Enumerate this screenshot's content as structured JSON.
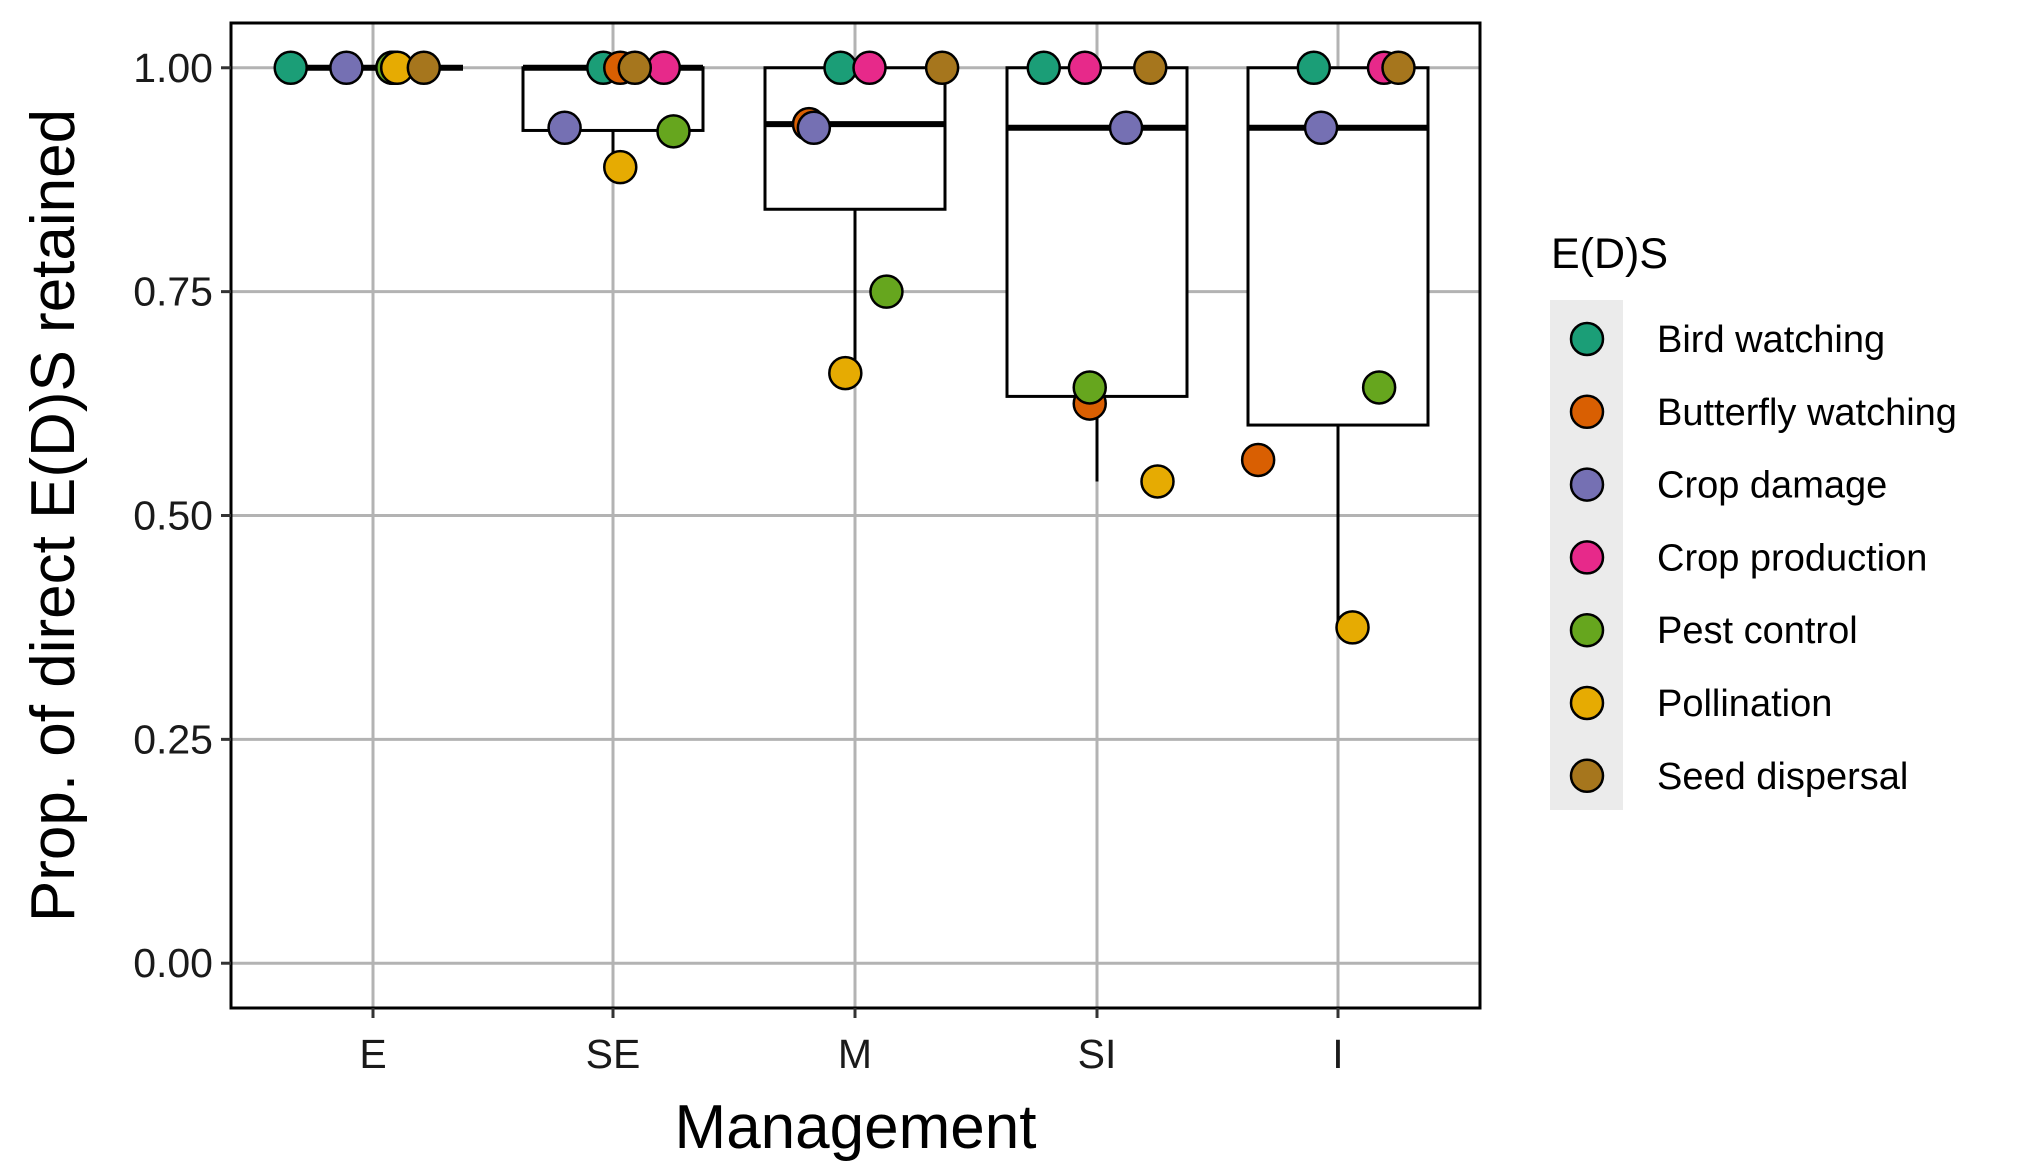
{
  "chart_data": {
    "type": "boxplot-with-points",
    "xlabel": "Management",
    "ylabel": "Prop. of direct E(D)S retained",
    "categories": [
      "E",
      "SE",
      "M",
      "SI",
      "I"
    ],
    "ylim": [
      -0.05,
      1.05
    ],
    "yticks": [
      0,
      0.25,
      0.5,
      0.75,
      1
    ],
    "ytick_labels": [
      "0.00",
      "0.25",
      "0.50",
      "0.75",
      "1.00"
    ],
    "grid": true,
    "legend": {
      "title": "E(D)S",
      "position": "right"
    },
    "series": [
      {
        "name": "Bird watching",
        "color": "#1b9e77"
      },
      {
        "name": "Butterfly watching",
        "color": "#d95f02"
      },
      {
        "name": "Crop damage",
        "color": "#7570b3"
      },
      {
        "name": "Crop production",
        "color": "#e7298a"
      },
      {
        "name": "Pest control",
        "color": "#66a61e"
      },
      {
        "name": "Pollination",
        "color": "#e6ab02"
      },
      {
        "name": "Seed dispersal",
        "color": "#a6761d"
      }
    ],
    "boxes": [
      {
        "category": "E",
        "lower_whisker": 1.0,
        "q1": 1.0,
        "median": 1.0,
        "q3": 1.0,
        "upper_whisker": 1.0
      },
      {
        "category": "SE",
        "lower_whisker": 0.889,
        "q1": 0.93,
        "median": 1.0,
        "q3": 1.0,
        "upper_whisker": 1.0
      },
      {
        "category": "M",
        "lower_whisker": 0.659,
        "q1": 0.842,
        "median": 0.937,
        "q3": 1.0,
        "upper_whisker": 1.0
      },
      {
        "category": "SI",
        "lower_whisker": 0.538,
        "q1": 0.633,
        "median": 0.933,
        "q3": 1.0,
        "upper_whisker": 1.0
      },
      {
        "category": "I",
        "lower_whisker": 0.375,
        "q1": 0.601,
        "median": 0.933,
        "q3": 1.0,
        "upper_whisker": 1.0
      }
    ],
    "points": [
      {
        "category": "E",
        "series": "Bird watching",
        "value": 1.0,
        "jitter": -0.34
      },
      {
        "category": "E",
        "series": "Butterfly watching",
        "value": 1.0,
        "jitter": 0.08
      },
      {
        "category": "E",
        "series": "Crop damage",
        "value": 1.0,
        "jitter": -0.11
      },
      {
        "category": "E",
        "series": "Crop production",
        "value": 1.0,
        "jitter": 0.09
      },
      {
        "category": "E",
        "series": "Pest control",
        "value": 1.0,
        "jitter": 0.08
      },
      {
        "category": "E",
        "series": "Pollination",
        "value": 1.0,
        "jitter": 0.1
      },
      {
        "category": "E",
        "series": "Seed dispersal",
        "value": 1.0,
        "jitter": 0.21
      },
      {
        "category": "SE",
        "series": "Bird watching",
        "value": 1.0,
        "jitter": -0.04
      },
      {
        "category": "SE",
        "series": "Butterfly watching",
        "value": 1.0,
        "jitter": 0.03
      },
      {
        "category": "SE",
        "series": "Crop damage",
        "value": 0.933,
        "jitter": -0.2
      },
      {
        "category": "SE",
        "series": "Crop production",
        "value": 1.0,
        "jitter": 0.21
      },
      {
        "category": "SE",
        "series": "Pest control",
        "value": 0.929,
        "jitter": 0.25
      },
      {
        "category": "SE",
        "series": "Pollination",
        "value": 0.889,
        "jitter": 0.03
      },
      {
        "category": "SE",
        "series": "Seed dispersal",
        "value": 1.0,
        "jitter": 0.09
      },
      {
        "category": "M",
        "series": "Bird watching",
        "value": 1.0,
        "jitter": -0.06
      },
      {
        "category": "M",
        "series": "Butterfly watching",
        "value": 0.937,
        "jitter": -0.19
      },
      {
        "category": "M",
        "series": "Crop damage",
        "value": 0.933,
        "jitter": -0.17
      },
      {
        "category": "M",
        "series": "Crop production",
        "value": 1.0,
        "jitter": 0.06
      },
      {
        "category": "M",
        "series": "Pest control",
        "value": 0.75,
        "jitter": 0.13
      },
      {
        "category": "M",
        "series": "Pollination",
        "value": 0.659,
        "jitter": -0.04
      },
      {
        "category": "M",
        "series": "Seed dispersal",
        "value": 1.0,
        "jitter": 0.36
      },
      {
        "category": "SI",
        "series": "Bird watching",
        "value": 1.0,
        "jitter": -0.22
      },
      {
        "category": "SI",
        "series": "Butterfly watching",
        "value": 0.625,
        "jitter": -0.03
      },
      {
        "category": "SI",
        "series": "Crop damage",
        "value": 0.933,
        "jitter": 0.12
      },
      {
        "category": "SI",
        "series": "Crop production",
        "value": 1.0,
        "jitter": -0.05
      },
      {
        "category": "SI",
        "series": "Pest control",
        "value": 0.643,
        "jitter": -0.03
      },
      {
        "category": "SI",
        "series": "Pollination",
        "value": 0.538,
        "jitter": 0.25
      },
      {
        "category": "SI",
        "series": "Seed dispersal",
        "value": 1.0,
        "jitter": 0.22
      },
      {
        "category": "I",
        "series": "Bird watching",
        "value": 1.0,
        "jitter": -0.1
      },
      {
        "category": "I",
        "series": "Butterfly watching",
        "value": 0.562,
        "jitter": -0.33
      },
      {
        "category": "I",
        "series": "Crop damage",
        "value": 0.933,
        "jitter": -0.07
      },
      {
        "category": "I",
        "series": "Crop production",
        "value": 1.0,
        "jitter": 0.19
      },
      {
        "category": "I",
        "series": "Pest control",
        "value": 0.643,
        "jitter": 0.17
      },
      {
        "category": "I",
        "series": "Pollination",
        "value": 0.375,
        "jitter": 0.06
      },
      {
        "category": "I",
        "series": "Seed dispersal",
        "value": 1.0,
        "jitter": 0.25
      }
    ]
  }
}
